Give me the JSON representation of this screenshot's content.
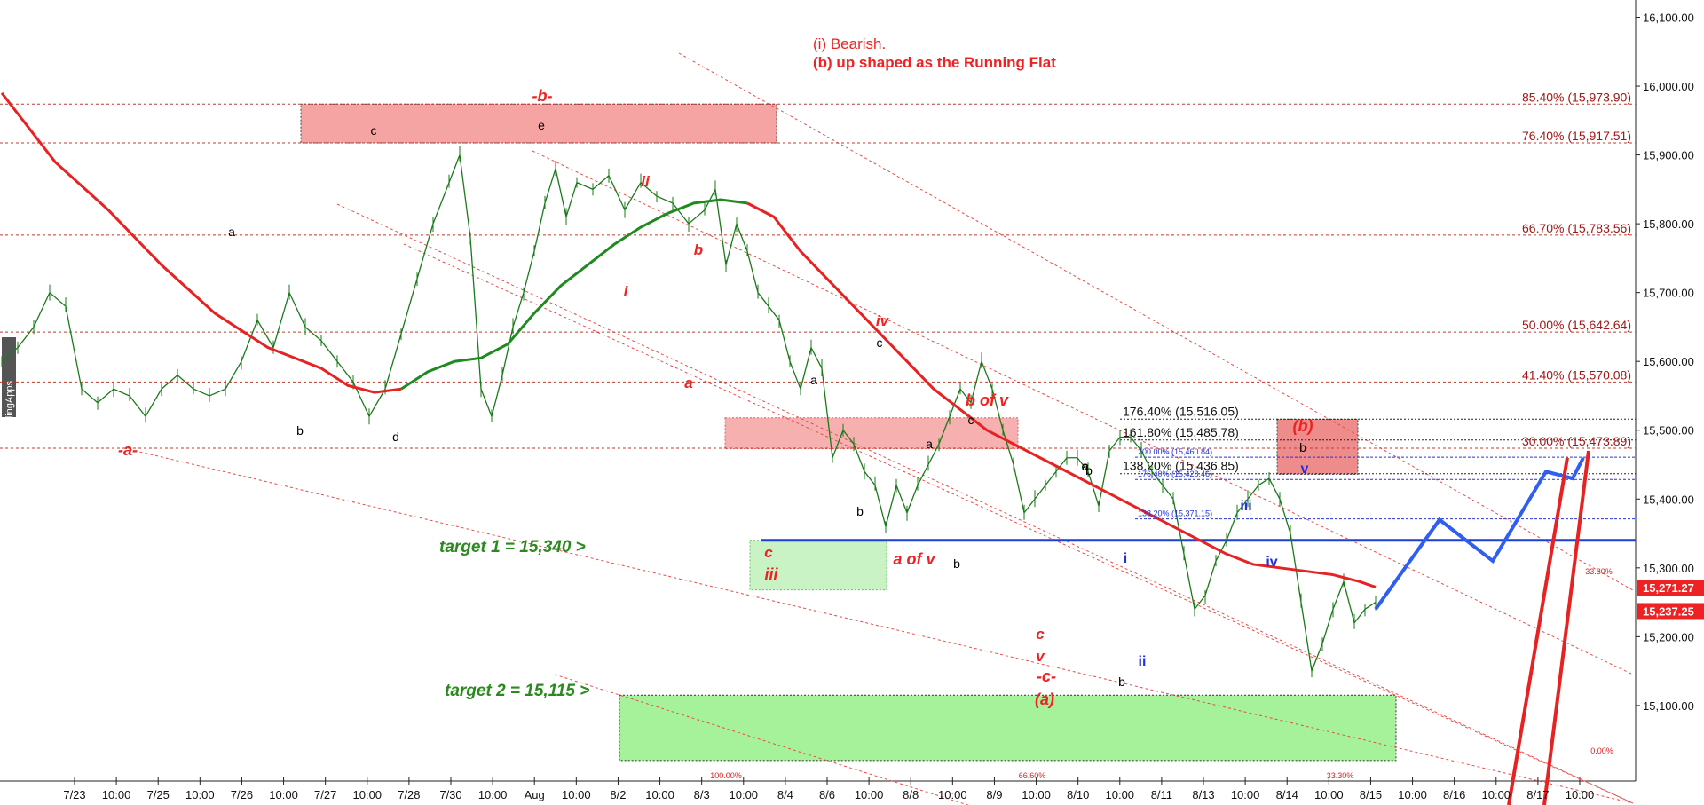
{
  "watermark": "TradingApps",
  "commentary": [
    "(i) Bearish.",
    "(b) up shaped as the Running Flat"
  ],
  "chart_data": {
    "type": "line",
    "ylim": [
      15020,
      16130
    ],
    "y_ticks": [
      15100,
      15200,
      15300,
      15400,
      15500,
      15600,
      15700,
      15800,
      15900,
      16000,
      16100
    ],
    "y_tick_labels": [
      "15,100.00",
      "15,200.00",
      "15,300.00",
      "15,400.00",
      "15,500.00",
      "15,600.00",
      "15,700.00",
      "15,800.00",
      "15,900.00",
      "16,000.00",
      "16,100.00"
    ],
    "x_tick_labels": [
      "7/23",
      "10:00",
      "7/25",
      "10:00",
      "7/26",
      "10:00",
      "7/27",
      "10:00",
      "7/28",
      "7/30",
      "10:00",
      "Aug",
      "10:00",
      "8/2",
      "10:00",
      "8/3",
      "10:00",
      "8/4",
      "8/6",
      "10:00",
      "8/8",
      "10:00",
      "8/9",
      "10:00",
      "8/10",
      "10:00",
      "8/11",
      "8/13",
      "10:00",
      "8/14",
      "10:00",
      "8/15",
      "10:00",
      "8/16",
      "10:00",
      "8/17",
      "10:00"
    ],
    "price_series": {
      "name": "price",
      "points": [
        [
          0,
          15600
        ],
        [
          6,
          15620
        ],
        [
          12,
          15650
        ],
        [
          18,
          15700
        ],
        [
          24,
          15680
        ],
        [
          30,
          15560
        ],
        [
          36,
          15540
        ],
        [
          42,
          15560
        ],
        [
          48,
          15550
        ],
        [
          54,
          15520
        ],
        [
          60,
          15560
        ],
        [
          66,
          15580
        ],
        [
          72,
          15560
        ],
        [
          78,
          15550
        ],
        [
          84,
          15560
        ],
        [
          90,
          15600
        ],
        [
          96,
          15660
        ],
        [
          102,
          15620
        ],
        [
          108,
          15700
        ],
        [
          114,
          15650
        ],
        [
          120,
          15630
        ],
        [
          126,
          15600
        ],
        [
          132,
          15570
        ],
        [
          138,
          15520
        ],
        [
          144,
          15560
        ],
        [
          150,
          15640
        ],
        [
          156,
          15720
        ],
        [
          162,
          15800
        ],
        [
          168,
          15860
        ],
        [
          172,
          15900
        ],
        [
          176,
          15780
        ],
        [
          180,
          15560
        ],
        [
          184,
          15520
        ],
        [
          188,
          15580
        ],
        [
          192,
          15650
        ],
        [
          196,
          15700
        ],
        [
          200,
          15760
        ],
        [
          204,
          15830
        ],
        [
          208,
          15880
        ],
        [
          212,
          15810
        ],
        [
          216,
          15860
        ],
        [
          222,
          15850
        ],
        [
          228,
          15870
        ],
        [
          234,
          15820
        ],
        [
          240,
          15860
        ],
        [
          246,
          15840
        ],
        [
          252,
          15830
        ],
        [
          258,
          15800
        ],
        [
          264,
          15820
        ],
        [
          268,
          15850
        ],
        [
          272,
          15740
        ],
        [
          276,
          15800
        ],
        [
          280,
          15760
        ],
        [
          284,
          15700
        ],
        [
          288,
          15680
        ],
        [
          292,
          15660
        ],
        [
          296,
          15600
        ],
        [
          300,
          15560
        ],
        [
          304,
          15620
        ],
        [
          308,
          15590
        ],
        [
          312,
          15460
        ],
        [
          316,
          15500
        ],
        [
          320,
          15480
        ],
        [
          324,
          15440
        ],
        [
          328,
          15420
        ],
        [
          332,
          15360
        ],
        [
          336,
          15420
        ],
        [
          340,
          15380
        ],
        [
          344,
          15420
        ],
        [
          348,
          15450
        ],
        [
          352,
          15480
        ],
        [
          356,
          15520
        ],
        [
          360,
          15560
        ],
        [
          364,
          15540
        ],
        [
          368,
          15600
        ],
        [
          372,
          15560
        ],
        [
          376,
          15500
        ],
        [
          380,
          15450
        ],
        [
          384,
          15380
        ],
        [
          388,
          15400
        ],
        [
          392,
          15420
        ],
        [
          396,
          15440
        ],
        [
          400,
          15460
        ],
        [
          404,
          15460
        ],
        [
          408,
          15440
        ],
        [
          412,
          15390
        ],
        [
          416,
          15470
        ],
        [
          420,
          15490
        ],
        [
          424,
          15490
        ],
        [
          428,
          15470
        ],
        [
          432,
          15440
        ],
        [
          436,
          15420
        ],
        [
          440,
          15400
        ],
        [
          444,
          15320
        ],
        [
          448,
          15240
        ],
        [
          452,
          15260
        ],
        [
          456,
          15310
        ],
        [
          460,
          15340
        ],
        [
          464,
          15380
        ],
        [
          468,
          15400
        ],
        [
          472,
          15420
        ],
        [
          476,
          15430
        ],
        [
          480,
          15400
        ],
        [
          484,
          15350
        ],
        [
          488,
          15250
        ],
        [
          492,
          15150
        ],
        [
          496,
          15190
        ],
        [
          500,
          15240
        ],
        [
          504,
          15280
        ],
        [
          508,
          15220
        ],
        [
          512,
          15240
        ],
        [
          516,
          15250
        ]
      ]
    },
    "ma_series": {
      "name": "moving average",
      "points": [
        [
          0,
          15990
        ],
        [
          20,
          15890
        ],
        [
          40,
          15820
        ],
        [
          60,
          15740
        ],
        [
          80,
          15670
        ],
        [
          100,
          15620
        ],
        [
          120,
          15590
        ],
        [
          130,
          15565
        ],
        [
          140,
          15555
        ],
        [
          150,
          15560
        ],
        [
          160,
          15585
        ],
        [
          170,
          15600
        ],
        [
          180,
          15605
        ],
        [
          190,
          15625
        ],
        [
          200,
          15670
        ],
        [
          210,
          15710
        ],
        [
          220,
          15740
        ],
        [
          230,
          15770
        ],
        [
          240,
          15795
        ],
        [
          250,
          15815
        ],
        [
          260,
          15830
        ],
        [
          270,
          15835
        ],
        [
          280,
          15830
        ],
        [
          290,
          15810
        ],
        [
          300,
          15760
        ],
        [
          310,
          15720
        ],
        [
          320,
          15680
        ],
        [
          330,
          15640
        ],
        [
          340,
          15600
        ],
        [
          350,
          15560
        ],
        [
          360,
          15530
        ],
        [
          370,
          15500
        ],
        [
          380,
          15480
        ],
        [
          390,
          15460
        ],
        [
          400,
          15440
        ],
        [
          410,
          15420
        ],
        [
          420,
          15400
        ],
        [
          430,
          15380
        ],
        [
          440,
          15360
        ],
        [
          450,
          15340
        ],
        [
          460,
          15320
        ],
        [
          470,
          15305
        ],
        [
          480,
          15300
        ],
        [
          490,
          15295
        ],
        [
          500,
          15290
        ],
        [
          510,
          15280
        ],
        [
          516,
          15272
        ]
      ]
    },
    "fib_levels": [
      {
        "label": "85.40% (15,973.90)",
        "value": 15973.9
      },
      {
        "label": "76.40% (15,917.51)",
        "value": 15917.51
      },
      {
        "label": "66.70% (15,783.56)",
        "value": 15783.56
      },
      {
        "label": "50.00% (15,642.64)",
        "value": 15642.64
      },
      {
        "label": "41.40% (15,570.08)",
        "value": 15570.08
      },
      {
        "label": "30.00% (15,473.89)",
        "value": 15473.89
      }
    ],
    "ext_levels": [
      {
        "label": "176.40% (15,516.05)",
        "value": 15516.05
      },
      {
        "label": "161.80% (15,485.78)",
        "value": 15485.78
      },
      {
        "label": "138.20% (15,436.85)",
        "value": 15436.85
      }
    ],
    "small_ext_levels": [
      {
        "label": "200.00% (15,460.84)",
        "value": 15460.84
      },
      {
        "label": "176.40% (15,428.46)",
        "value": 15428.46
      },
      {
        "label": "138.20% (15,371.15)",
        "value": 15371.15
      }
    ],
    "channel_pcts": [
      {
        "label": "-33.30%",
        "value": 15300
      },
      {
        "label": "0.00%",
        "value": 15063
      },
      {
        "label": "100.00%",
        "value": 15020
      },
      {
        "label": "66.60%",
        "value": 15020
      },
      {
        "label": "33.30%",
        "value": 15020
      }
    ],
    "targets": [
      {
        "label": "target 1 = 15,340 >",
        "value": 15340
      },
      {
        "label": "target 2 = 15,115 >",
        "value": 15115
      }
    ],
    "price_tags": [
      {
        "label": "15,271.27",
        "value": 15271.27
      },
      {
        "label": "15,237.25",
        "value": 15237.25
      }
    ],
    "projection_path": [
      [
        516,
        15240
      ],
      [
        540,
        15370
      ],
      [
        560,
        15310
      ],
      [
        580,
        15440
      ],
      [
        590,
        15430
      ],
      [
        594,
        15460
      ]
    ],
    "wave_labels": {
      "black": [
        "a",
        "c",
        "e",
        "b",
        "d",
        "a",
        "b",
        "c",
        "a",
        "b",
        "c",
        "b",
        "a",
        "b",
        "c",
        "b"
      ],
      "red": [
        "-b-",
        "-a-",
        "ii",
        "i",
        "b",
        "a",
        "iv",
        "b of v",
        "c",
        "iii",
        "a of v",
        "c",
        "v",
        "-c-",
        "(a)",
        "(b)"
      ],
      "blue": [
        "i",
        "ii",
        "iii",
        "iv",
        "v"
      ]
    }
  }
}
